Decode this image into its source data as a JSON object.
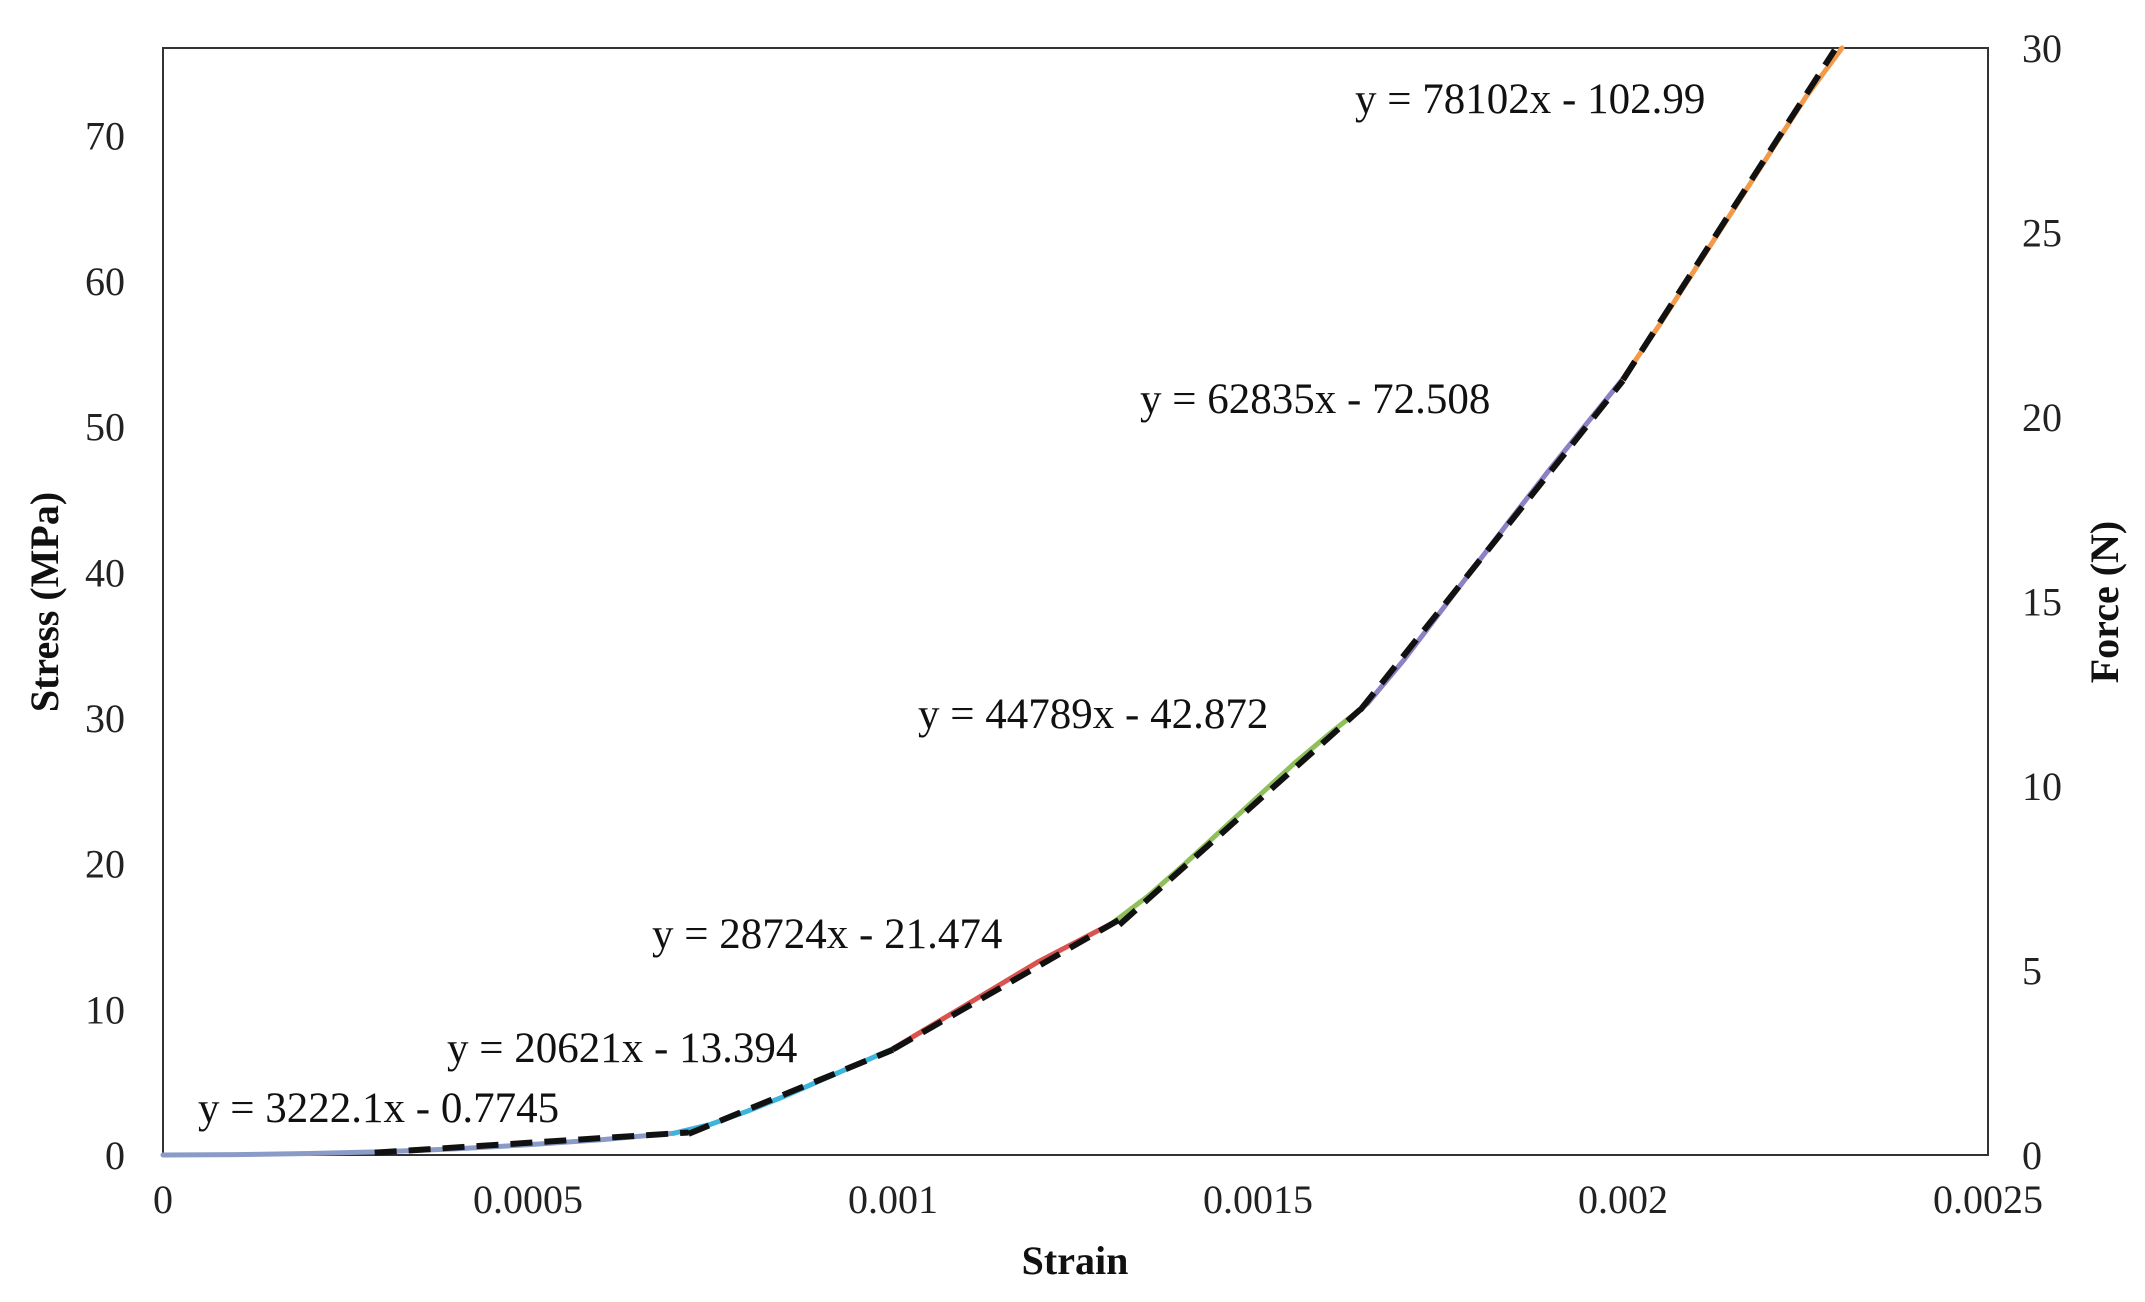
{
  "chart_data": {
    "type": "line",
    "title": "",
    "xlabel": "Strain",
    "ylabel": "Stress (MPa)",
    "y2label": "Force (N)",
    "xlim": [
      0,
      0.0025
    ],
    "ylim": [
      0,
      76
    ],
    "y2lim": [
      0,
      30
    ],
    "grid": false,
    "legend": "none",
    "x_ticks": [
      {
        "value": 0,
        "label": "0"
      },
      {
        "value": 0.0005,
        "label": "0.0005"
      },
      {
        "value": 0.001,
        "label": "0.001"
      },
      {
        "value": 0.0015,
        "label": "0.0015"
      },
      {
        "value": 0.002,
        "label": "0.002"
      },
      {
        "value": 0.0025,
        "label": "0.0025"
      }
    ],
    "y_ticks": [
      {
        "value": 0,
        "label": "0"
      },
      {
        "value": 10,
        "label": "10"
      },
      {
        "value": 20,
        "label": "20"
      },
      {
        "value": 30,
        "label": "30"
      },
      {
        "value": 40,
        "label": "40"
      },
      {
        "value": 50,
        "label": "50"
      },
      {
        "value": 60,
        "label": "60"
      },
      {
        "value": 70,
        "label": "70"
      }
    ],
    "y2_ticks": [
      {
        "value": 0,
        "label": "0"
      },
      {
        "value": 5,
        "label": "5"
      },
      {
        "value": 10,
        "label": "10"
      },
      {
        "value": 15,
        "label": "15"
      },
      {
        "value": 20,
        "label": "20"
      },
      {
        "value": 25,
        "label": "25"
      },
      {
        "value": 30,
        "label": "30"
      }
    ],
    "series": [
      {
        "color": "#8a9bc7",
        "x": [
          0,
          0.0001,
          0.0002,
          0.0003,
          0.0004,
          0.0005,
          0.0006,
          0.0007
        ],
        "y": [
          0,
          0.03,
          0.1,
          0.22,
          0.42,
          0.7,
          1.05,
          1.5
        ]
      },
      {
        "color": "#3cb4dc",
        "x": [
          0.0007,
          0.00075,
          0.0008,
          0.00085,
          0.0009,
          0.00095,
          0.001
        ],
        "y": [
          1.5,
          2.1,
          3.0,
          4.0,
          5.1,
          6.2,
          7.3
        ]
      },
      {
        "color": "#d9534f",
        "x": [
          0.001,
          0.00105,
          0.0011,
          0.00115,
          0.0012,
          0.00125,
          0.0013
        ],
        "y": [
          7.3,
          8.8,
          10.3,
          11.8,
          13.3,
          14.6,
          15.9
        ]
      },
      {
        "color": "#8fbf5a",
        "x": [
          0.0013,
          0.00135,
          0.0014,
          0.00145,
          0.0015,
          0.00155,
          0.0016,
          0.00165
        ],
        "y": [
          15.9,
          17.8,
          20.0,
          22.3,
          24.6,
          26.9,
          29.0,
          31.0
        ]
      },
      {
        "color": "#8a82c2",
        "x": [
          0.00165,
          0.0017,
          0.00175,
          0.0018,
          0.00185,
          0.0019,
          0.00195,
          0.002
        ],
        "y": [
          31.0,
          34.0,
          37.3,
          40.6,
          43.9,
          47.1,
          50.2,
          53.3
        ]
      },
      {
        "color": "#f39a4a",
        "x": [
          0.002,
          0.00205,
          0.0021,
          0.00215,
          0.0022,
          0.00225,
          0.0023
        ],
        "y": [
          53.3,
          57.0,
          60.9,
          64.8,
          68.7,
          72.6,
          76.0
        ]
      }
    ],
    "fits": [
      {
        "label": "y = 3222.1x - 0.7745",
        "slope": 3222.1,
        "intercept": -0.7745,
        "x_range": [
          0.00029,
          0.00072
        ]
      },
      {
        "label": "y = 20621x - 13.394",
        "slope": 20621,
        "intercept": -13.394,
        "x_range": [
          0.00072,
          0.001
        ]
      },
      {
        "label": "y = 28724x - 21.474",
        "slope": 28724,
        "intercept": -21.474,
        "x_range": [
          0.001,
          0.00131
        ]
      },
      {
        "label": "y = 44789x - 42.872",
        "slope": 44789,
        "intercept": -42.872,
        "x_range": [
          0.00131,
          0.00164
        ]
      },
      {
        "label": "y = 62835x - 72.508",
        "slope": 62835,
        "intercept": -72.508,
        "x_range": [
          0.00164,
          0.002
        ]
      },
      {
        "label": "y = 78102x - 102.99",
        "slope": 78102,
        "intercept": -102.99,
        "x_range": [
          0.002,
          0.00229
        ]
      }
    ]
  }
}
